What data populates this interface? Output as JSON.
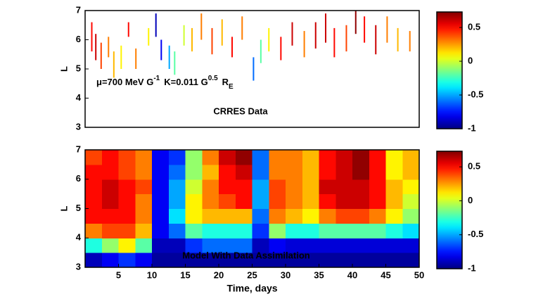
{
  "chart_data": [
    {
      "type": "segments",
      "ylabel": "L",
      "annotation": [
        "μ=700 MeV G",
        "-1",
        "K=0.011 G",
        "0.5",
        "R",
        "E"
      ],
      "label": "CRRES Data",
      "xlim": [
        0,
        50
      ],
      "ylim": [
        3,
        7
      ],
      "yticks": [
        3,
        4,
        5,
        6,
        7
      ],
      "colormap": "jet",
      "clim": [
        -1,
        0.73
      ],
      "cticks": [
        0.5,
        0,
        -0.5,
        -1
      ],
      "x": [
        1.0,
        1.6,
        2.4,
        3.5,
        4.3,
        5.4,
        6.5,
        7.6,
        9.5,
        10.6,
        11.4,
        12.6,
        13.4,
        14.8,
        16.0,
        17.4,
        19.0,
        20.5,
        22.0,
        23.5,
        25.2,
        26.3,
        27.5,
        29.3,
        31.0,
        32.8,
        34.5,
        36.0,
        37.3,
        39.1,
        40.5,
        41.8,
        43.5,
        45.2,
        46.8,
        48.6
      ],
      "y_low": [
        5.6,
        5.3,
        5.0,
        5.4,
        4.7,
        5.0,
        6.1,
        5.0,
        5.8,
        6.1,
        5.3,
        5.0,
        4.8,
        5.8,
        5.6,
        6.0,
        5.5,
        5.8,
        5.4,
        6.0,
        4.6,
        5.2,
        5.6,
        5.3,
        5.8,
        5.4,
        5.7,
        5.9,
        5.4,
        5.6,
        6.2,
        5.9,
        5.5,
        5.9,
        5.6,
        5.6
      ],
      "y_high": [
        6.6,
        6.2,
        5.9,
        6.1,
        5.6,
        5.8,
        6.6,
        5.7,
        6.4,
        6.9,
        6.0,
        5.8,
        5.6,
        6.5,
        6.4,
        6.9,
        6.4,
        6.7,
        6.1,
        6.8,
        5.4,
        6.0,
        6.4,
        6.1,
        6.6,
        6.3,
        6.6,
        6.9,
        6.4,
        6.5,
        7.0,
        6.8,
        6.5,
        6.8,
        6.4,
        6.3
      ],
      "values": [
        0.5,
        0.6,
        0.4,
        0.3,
        0.2,
        0.1,
        0.5,
        0.3,
        0.1,
        -0.9,
        -0.8,
        -0.5,
        -0.2,
        0.0,
        0.2,
        0.3,
        0.4,
        0.2,
        0.5,
        0.3,
        -0.6,
        -0.2,
        0.1,
        0.5,
        0.6,
        0.3,
        0.6,
        0.6,
        0.5,
        0.4,
        0.7,
        0.5,
        0.6,
        0.3,
        0.2,
        0.3
      ]
    },
    {
      "type": "heatmap",
      "ylabel": "L",
      "xlabel": "Time, days",
      "label": "Model With Data Assimilation",
      "xlim": [
        0,
        50
      ],
      "xticks": [
        5,
        10,
        15,
        20,
        25,
        30,
        35,
        40,
        45,
        50
      ],
      "ylim": [
        3,
        7
      ],
      "yticks": [
        3,
        4,
        5,
        6,
        7
      ],
      "colormap": "jet",
      "clim": [
        -1,
        0.73
      ],
      "cticks": [
        0.5,
        0,
        -0.5,
        -1
      ],
      "xbins": [
        0,
        2.5,
        5,
        7.5,
        10,
        12.5,
        15,
        17.5,
        20,
        22.5,
        25,
        27.5,
        30,
        32.5,
        35,
        37.5,
        40,
        42.5,
        45,
        47.5,
        50
      ],
      "ybins": [
        3,
        3.5,
        4,
        4.5,
        5,
        5.5,
        6,
        6.5,
        7
      ],
      "values": [
        [
          -0.9,
          -0.8,
          -0.7,
          -0.8,
          -0.95,
          -0.95,
          -0.95,
          -0.95,
          -0.95,
          -0.95,
          -0.95,
          -0.95,
          -0.95,
          -0.95,
          -0.95,
          -0.95,
          -0.95,
          -0.95,
          -0.95,
          -0.95
        ],
        [
          -0.3,
          -0.1,
          0.1,
          -0.2,
          -0.9,
          -0.9,
          -0.7,
          -0.6,
          -0.6,
          -0.6,
          -0.9,
          -0.8,
          -0.85,
          -0.85,
          -0.85,
          -0.85,
          -0.85,
          -0.85,
          -0.85,
          -0.85
        ],
        [
          0.3,
          0.4,
          0.4,
          0.2,
          -0.8,
          -0.6,
          -0.2,
          -0.3,
          -0.3,
          -0.3,
          -0.7,
          -0.1,
          -0.3,
          -0.3,
          -0.2,
          -0.2,
          -0.2,
          -0.2,
          -0.3,
          -0.4
        ],
        [
          0.5,
          0.5,
          0.5,
          0.3,
          -0.8,
          -0.4,
          0.1,
          0.2,
          0.2,
          0.2,
          -0.6,
          0.3,
          0.2,
          0.1,
          0.3,
          0.4,
          0.4,
          0.3,
          0.1,
          -0.1
        ],
        [
          0.5,
          0.6,
          0.5,
          0.3,
          -0.8,
          -0.5,
          0.1,
          0.3,
          0.4,
          0.5,
          -0.5,
          0.4,
          0.3,
          0.2,
          0.5,
          0.6,
          0.6,
          0.5,
          0.2,
          0.0
        ],
        [
          0.5,
          0.6,
          0.5,
          0.4,
          -0.8,
          -0.5,
          0.0,
          0.3,
          0.5,
          0.5,
          -0.5,
          0.4,
          0.3,
          0.2,
          0.6,
          0.6,
          0.6,
          0.5,
          0.2,
          0.1
        ],
        [
          0.5,
          0.5,
          0.4,
          0.3,
          -0.8,
          -0.6,
          -0.1,
          0.2,
          0.5,
          0.6,
          -0.6,
          0.3,
          0.3,
          0.2,
          0.5,
          0.6,
          0.7,
          0.5,
          0.1,
          0.2
        ],
        [
          0.4,
          0.5,
          0.4,
          0.3,
          -0.8,
          -0.7,
          -0.1,
          0.3,
          0.6,
          0.7,
          -0.6,
          0.3,
          0.3,
          0.2,
          0.5,
          0.6,
          0.7,
          0.5,
          0.1,
          0.2
        ]
      ]
    }
  ]
}
